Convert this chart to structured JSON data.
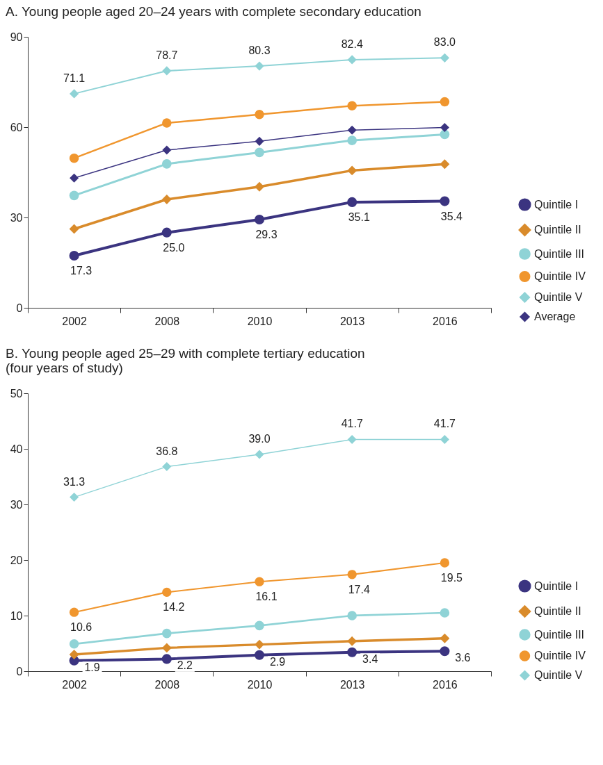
{
  "chart_data": [
    {
      "type": "line",
      "title": "A. Young people aged 20–24 years with complete secondary education",
      "categories": [
        "2002",
        "2008",
        "2010",
        "2013",
        "2016"
      ],
      "ylim": [
        0,
        90
      ],
      "yticks": [
        0,
        30,
        60,
        90
      ],
      "grid": false,
      "legend": "bottom right",
      "series": [
        {
          "name": "Quintile I",
          "color": "#3b3480",
          "marker": "circle",
          "values": [
            17.3,
            25.0,
            29.3,
            35.1,
            35.4
          ],
          "value_labels": [
            "17.3",
            "25.0",
            "29.3",
            "35.1",
            "35.4"
          ]
        },
        {
          "name": "Quintile II",
          "color": "#d98b2b",
          "marker": "diamond",
          "values": [
            26.2,
            36.0,
            40.2,
            45.6,
            47.7
          ]
        },
        {
          "name": "Quintile III",
          "color": "#8fd3d6",
          "marker": "circle",
          "values": [
            37.3,
            47.8,
            51.6,
            55.6,
            57.6
          ]
        },
        {
          "name": "Quintile IV",
          "color": "#f0962e",
          "marker": "circle",
          "values": [
            49.7,
            61.4,
            64.2,
            67.1,
            68.4
          ]
        },
        {
          "name": "Quintile V",
          "color": "#8fd3d6",
          "marker": "diamond",
          "values": [
            71.1,
            78.7,
            80.3,
            82.4,
            83.0
          ],
          "value_labels": [
            "71.1",
            "78.7",
            "80.3",
            "82.4",
            "83.0"
          ]
        },
        {
          "name": "Average",
          "color": "#3b3480",
          "marker": "diamond",
          "values": [
            43.1,
            52.4,
            55.3,
            59.0,
            59.9
          ]
        }
      ]
    },
    {
      "type": "line",
      "title": "B. Young people aged 25–29 with complete tertiary education\n   (four years of study)",
      "categories": [
        "2002",
        "2008",
        "2010",
        "2013",
        "2016"
      ],
      "ylim": [
        0,
        50
      ],
      "yticks": [
        0,
        10,
        20,
        30,
        40,
        50
      ],
      "grid": false,
      "legend": "bottom right",
      "series": [
        {
          "name": "Quintile I",
          "color": "#3b3480",
          "marker": "circle",
          "values": [
            1.9,
            2.2,
            2.9,
            3.4,
            3.6
          ],
          "value_labels": [
            "1.9",
            "2.2",
            "2.9",
            "3.4",
            "3.6"
          ]
        },
        {
          "name": "Quintile II",
          "color": "#d98b2b",
          "marker": "diamond",
          "values": [
            3.0,
            4.2,
            4.8,
            5.4,
            5.9
          ]
        },
        {
          "name": "Quintile III",
          "color": "#8fd3d6",
          "marker": "circle",
          "values": [
            4.9,
            6.8,
            8.2,
            10.0,
            10.5
          ]
        },
        {
          "name": "Quintile IV",
          "color": "#f0962e",
          "marker": "circle",
          "values": [
            10.6,
            14.2,
            16.1,
            17.4,
            19.5
          ],
          "value_labels": [
            "10.6",
            "14.2",
            "16.1",
            "17.4",
            "19.5"
          ]
        },
        {
          "name": "Quintile V",
          "color": "#8fd3d6",
          "marker": "diamond",
          "values": [
            31.3,
            36.8,
            39.0,
            41.7,
            41.7
          ],
          "value_labels": [
            "31.3",
            "36.8",
            "39.0",
            "41.7",
            "41.7"
          ]
        }
      ]
    }
  ]
}
